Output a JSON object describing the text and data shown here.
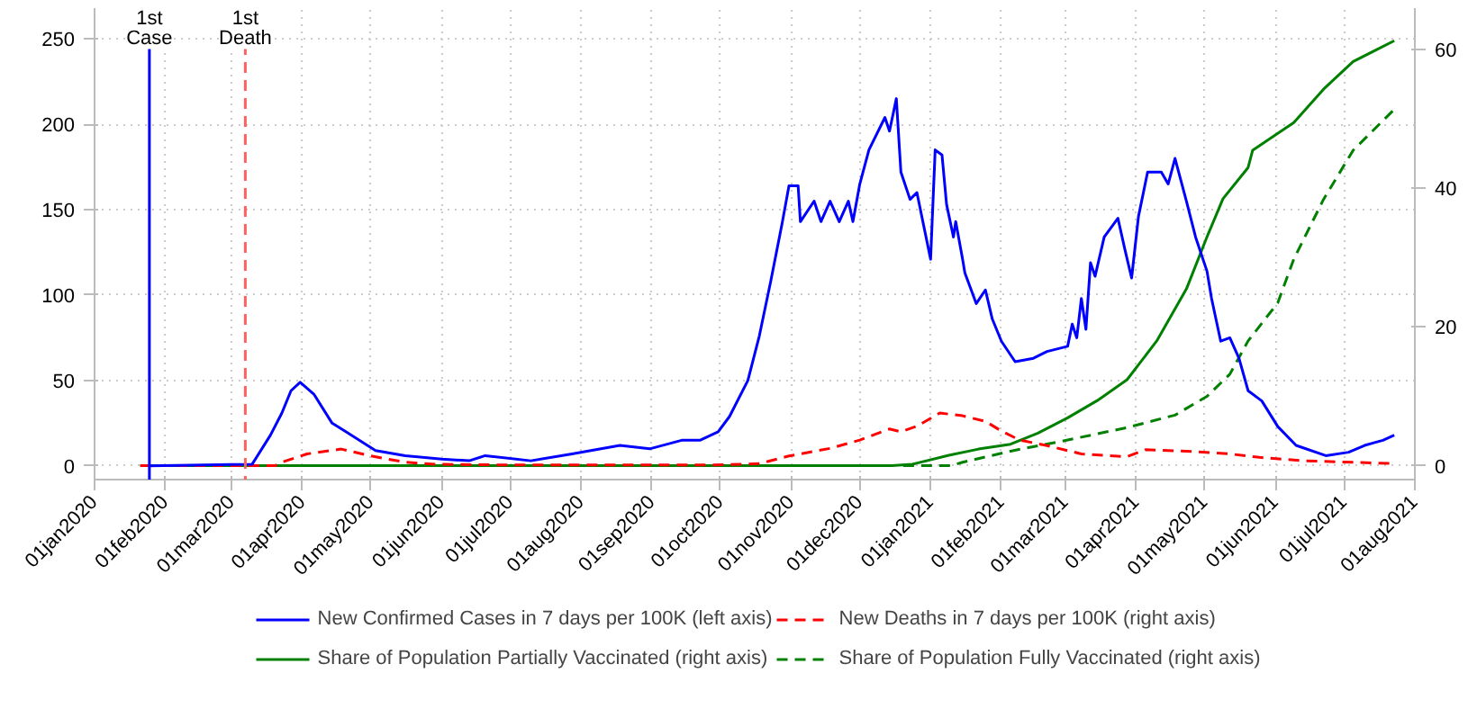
{
  "chart_data": {
    "type": "line",
    "xlim": [
      "2020-01-01",
      "2021-08-01"
    ],
    "xticks": [
      {
        "value": "2020-01-01",
        "label": "01jan2020"
      },
      {
        "value": "2020-02-01",
        "label": "01feb2020"
      },
      {
        "value": "2020-03-01",
        "label": "01mar2020"
      },
      {
        "value": "2020-04-01",
        "label": "01apr2020"
      },
      {
        "value": "2020-05-01",
        "label": "01may2020"
      },
      {
        "value": "2020-06-01",
        "label": "01jun2020"
      },
      {
        "value": "2020-07-01",
        "label": "01jul2020"
      },
      {
        "value": "2020-08-01",
        "label": "01aug2020"
      },
      {
        "value": "2020-09-01",
        "label": "01sep2020"
      },
      {
        "value": "2020-10-01",
        "label": "01oct2020"
      },
      {
        "value": "2020-11-01",
        "label": "01nov2020"
      },
      {
        "value": "2020-12-01",
        "label": "01dec2020"
      },
      {
        "value": "2021-01-01",
        "label": "01jan2021"
      },
      {
        "value": "2021-02-01",
        "label": "01feb2021"
      },
      {
        "value": "2021-03-01",
        "label": "01mar2021"
      },
      {
        "value": "2021-04-01",
        "label": "01apr2021"
      },
      {
        "value": "2021-05-01",
        "label": "01may2021"
      },
      {
        "value": "2021-06-01",
        "label": "01jun2021"
      },
      {
        "value": "2021-07-01",
        "label": "01jul2021"
      },
      {
        "value": "2021-08-01",
        "label": "01aug2021"
      }
    ],
    "ylim": [
      -8,
      268
    ],
    "yticks": [
      0,
      50,
      100,
      150,
      200,
      250
    ],
    "y2lim": [
      -2,
      66
    ],
    "y2ticks": [
      0,
      20,
      40,
      60
    ],
    "grid": true,
    "legend": "bottom",
    "ref_lines": [
      {
        "axis": "x",
        "value": "2020-01-25",
        "label": "1st\nCase",
        "color": "#0000ff",
        "line_style": "solid"
      },
      {
        "axis": "x",
        "value": "2020-03-07",
        "label": "1st\nDeath",
        "color": "#ff6060",
        "line_style": "dashed"
      }
    ],
    "series": [
      {
        "name": "New Confirmed Cases in 7 days per 100K (left axis)",
        "color": "#0000ff",
        "line_style": "solid",
        "x": [
          "2020-01-25",
          "2020-03-10",
          "2020-03-18",
          "2020-03-23",
          "2020-03-27",
          "2020-03-31",
          "2020-04-06",
          "2020-04-14",
          "2020-04-20",
          "2020-05-03",
          "2020-05-16",
          "2020-06-01",
          "2020-06-13",
          "2020-06-20",
          "2020-07-10",
          "2020-07-28",
          "2020-08-18",
          "2020-08-31",
          "2020-09-14",
          "2020-09-22",
          "2020-09-30",
          "2020-10-05",
          "2020-10-13",
          "2020-10-18",
          "2020-10-23",
          "2020-10-28",
          "2020-10-31",
          "2020-11-04",
          "2020-11-05",
          "2020-11-11",
          "2020-11-14",
          "2020-11-18",
          "2020-11-22",
          "2020-11-26",
          "2020-11-28",
          "2020-12-01",
          "2020-12-05",
          "2020-12-12",
          "2020-12-14",
          "2020-12-17",
          "2020-12-19",
          "2020-12-23",
          "2020-12-26",
          "2021-01-01",
          "2021-01-03",
          "2021-01-06",
          "2021-01-08",
          "2021-01-11",
          "2021-01-12",
          "2021-01-15",
          "2021-01-16",
          "2021-01-21",
          "2021-01-25",
          "2021-01-28",
          "2021-02-01",
          "2021-02-07",
          "2021-02-15",
          "2021-02-21",
          "2021-03-02",
          "2021-03-04",
          "2021-03-06",
          "2021-03-08",
          "2021-03-10",
          "2021-03-12",
          "2021-03-14",
          "2021-03-18",
          "2021-03-24",
          "2021-03-27",
          "2021-03-30",
          "2021-04-02",
          "2021-04-06",
          "2021-04-12",
          "2021-04-15",
          "2021-04-18",
          "2021-04-21",
          "2021-04-23",
          "2021-04-27",
          "2021-05-02",
          "2021-05-04",
          "2021-05-08",
          "2021-05-12",
          "2021-05-16",
          "2021-05-20",
          "2021-05-26",
          "2021-06-02",
          "2021-06-10",
          "2021-06-23",
          "2021-07-03",
          "2021-07-10",
          "2021-07-18",
          "2021-07-23"
        ],
        "values": [
          0,
          1,
          18,
          31,
          44,
          49,
          42,
          25,
          20,
          9,
          6,
          4,
          3,
          6,
          3,
          7,
          12,
          10,
          15,
          15,
          20,
          29,
          50,
          76,
          108,
          142,
          164,
          164,
          143,
          155,
          143,
          155,
          143,
          155,
          143,
          165,
          185,
          204,
          196,
          215,
          172,
          156,
          160,
          121,
          185,
          182,
          153,
          134,
          143,
          121,
          113,
          95,
          103,
          86,
          73,
          61,
          63,
          67,
          70,
          83,
          75,
          98,
          80,
          119,
          111,
          134,
          145,
          127,
          110,
          146,
          172,
          172,
          165,
          180,
          165,
          155,
          134,
          114,
          98,
          73,
          75,
          63,
          44,
          38,
          23,
          12,
          6,
          8,
          12,
          15,
          18
        ]
      },
      {
        "name": "New Deaths in 7 days per 100K (right axis)",
        "color": "#ff0000",
        "line_style": "dashed",
        "axis": "y2",
        "x": [
          "2020-01-21",
          "2020-03-20",
          "2020-03-23",
          "2020-04-03",
          "2020-04-18",
          "2020-05-01",
          "2020-05-16",
          "2020-05-29",
          "2020-07-01",
          "2020-09-28",
          "2020-10-18",
          "2020-10-31",
          "2020-11-18",
          "2020-12-01",
          "2020-12-14",
          "2020-12-19",
          "2020-12-26",
          "2021-01-05",
          "2021-01-15",
          "2021-01-25",
          "2021-02-01",
          "2021-02-09",
          "2021-02-21",
          "2021-03-08",
          "2021-03-28",
          "2021-04-05",
          "2021-04-23",
          "2021-05-12",
          "2021-05-25",
          "2021-06-14",
          "2021-07-23"
        ],
        "values": [
          0,
          0,
          0.5,
          1.7,
          2.4,
          1.4,
          0.5,
          0.2,
          0.1,
          0.1,
          0.3,
          1.4,
          2.5,
          3.7,
          5.3,
          4.9,
          5.7,
          7.6,
          7.2,
          6.4,
          5.0,
          3.7,
          2.9,
          1.7,
          1.3,
          2.3,
          2.1,
          1.7,
          1.2,
          0.7,
          0.3
        ]
      },
      {
        "name": "Share of Population Partially Vaccinated (right axis)",
        "color": "#008000",
        "line_style": "solid",
        "axis": "y2",
        "x": [
          "2020-01-21",
          "2020-12-15",
          "2020-12-24",
          "2021-01-09",
          "2021-01-22",
          "2021-02-05",
          "2021-02-17",
          "2021-03-02",
          "2021-03-15",
          "2021-03-28",
          "2021-04-10",
          "2021-04-23",
          "2021-05-02",
          "2021-05-09",
          "2021-05-20",
          "2021-05-22",
          "2021-06-09",
          "2021-06-22",
          "2021-07-05",
          "2021-07-23"
        ],
        "values": [
          0,
          0,
          0.2,
          1.5,
          2.4,
          3.1,
          4.7,
          6.9,
          9.4,
          12.4,
          18,
          25.5,
          33,
          38.5,
          43,
          45.5,
          49.5,
          54.3,
          58.3,
          61.3
        ]
      },
      {
        "name": "Share of Population Fully Vaccinated (right axis)",
        "color": "#008000",
        "line_style": "dashed",
        "axis": "y2",
        "x": [
          "2020-12-20",
          "2021-01-10",
          "2021-01-15",
          "2021-02-05",
          "2021-03-02",
          "2021-03-28",
          "2021-04-18",
          "2021-05-02",
          "2021-05-12",
          "2021-05-20",
          "2021-06-02",
          "2021-06-09",
          "2021-06-22",
          "2021-07-05",
          "2021-07-23"
        ],
        "values": [
          0,
          0,
          0.5,
          2.1,
          3.7,
          5.5,
          7.3,
          10,
          13.2,
          18,
          23.5,
          29.8,
          38.4,
          45.5,
          51.4
        ]
      }
    ]
  }
}
